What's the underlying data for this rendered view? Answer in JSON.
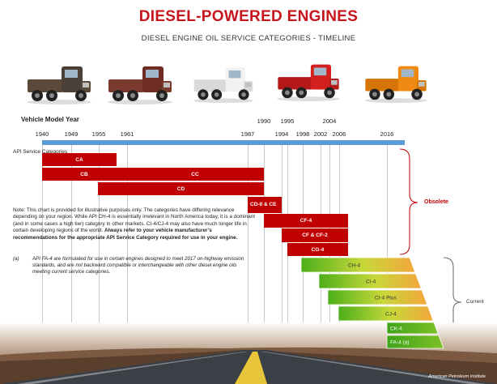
{
  "title": "DIESEL-POWERED ENGINES",
  "subtitle": "DIESEL ENGINE OIL SERVICE CATEGORIES - TIMELINE",
  "axis": {
    "label": "Vehicle Model Year",
    "years_lower": [
      "1940",
      "1949",
      "1955",
      "1961",
      "1987",
      "1994",
      "1998",
      "2002",
      "2006",
      "2016"
    ],
    "years_upper": [
      "1990",
      "1995",
      "2004"
    ]
  },
  "api_label": "API Service Categories",
  "categories": [
    {
      "name": "CA",
      "start": 1940,
      "end": 1949,
      "status": "obsolete"
    },
    {
      "name": "CB",
      "start": 1940,
      "end": 1955,
      "status": "obsolete"
    },
    {
      "name": "CC",
      "start": 1955,
      "end": 1987,
      "status": "obsolete"
    },
    {
      "name": "CD",
      "start": 1955,
      "end": 1987,
      "status": "obsolete"
    },
    {
      "name": "CD-II & CE",
      "start": 1987,
      "end": 1994,
      "status": "obsolete"
    },
    {
      "name": "CF-4",
      "start": 1990,
      "end": 2006,
      "status": "obsolete"
    },
    {
      "name": "CF & CF-2",
      "start": 1994,
      "end": 2006,
      "status": "obsolete"
    },
    {
      "name": "CG-4",
      "start": 1995,
      "end": 2006,
      "status": "obsolete"
    },
    {
      "name": "CH-4",
      "start": 1998,
      "end": 2016,
      "status": "current"
    },
    {
      "name": "CI-4",
      "start": 2002,
      "end": 2016,
      "status": "current"
    },
    {
      "name": "CI-4 Plus",
      "start": 2004,
      "end": 2016,
      "status": "current"
    },
    {
      "name": "CJ-4",
      "start": 2006,
      "end": 2016,
      "status": "current"
    },
    {
      "name": "CK-4",
      "start": 2016,
      "end": 2016,
      "status": "current"
    },
    {
      "name": "FA-4 (a)",
      "start": 2016,
      "end": 2016,
      "status": "current"
    }
  ],
  "group_labels": {
    "obsolete": "Obsolete",
    "current": "Current"
  },
  "note": {
    "text": "Note: This chart is provided for illustrative purposes only. The categories have differing relevance depending on your region.  While API CH-4 is essentially irrelevant in North America today, it is a dominant (and in some cases a high tier) category in other markets. CI-4/CJ-4 may also have much longer life in certain developing regions of the world. ",
    "bold": "Always refer to your vehicle  manufacturer’s recommendations for the appropriate API Service Category required for use in your engine."
  },
  "footnote": {
    "mark": "(a)",
    "text": "API FA-4 are formulated for use in certain engines designed to meet 2017 on-highway emission standards, and are not backward compatible or interchangeable with other diesel engine oils meeting current service categories."
  },
  "source": "American Petroleum Institute",
  "trucks": [
    {
      "name": "vintage-1940s-truck-icon",
      "cab": "#4a4038",
      "body": "#5b4a3a"
    },
    {
      "name": "1950s-truck-icon",
      "cab": "#6e2c24",
      "body": "#7a3b2e"
    },
    {
      "name": "cabover-truck-icon",
      "cab": "#f2f2f2",
      "body": "#d9d9d9"
    },
    {
      "name": "modern-red-truck-icon",
      "cab": "#d41f1f",
      "body": "#b51818"
    },
    {
      "name": "modern-orange-truck-icon",
      "cab": "#f08a12",
      "body": "#d77406"
    }
  ],
  "colors": {
    "title": "#c4161c",
    "obsolete": "#c00000",
    "timeline": "#5b9bd5",
    "current_gradient": [
      "#4caf1a",
      "#c8d83a",
      "#f3a63b"
    ]
  }
}
